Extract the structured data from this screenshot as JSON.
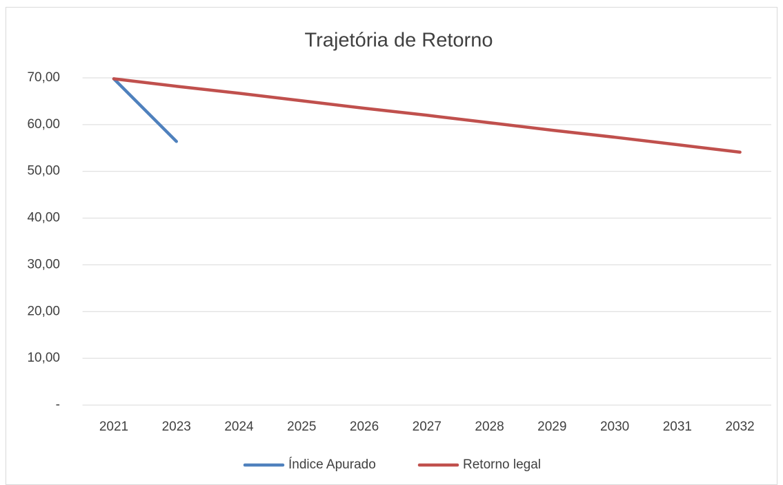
{
  "chart_data": {
    "type": "line",
    "title": "Trajetória de Retorno",
    "categories": [
      "2021",
      "2023",
      "2024",
      "2025",
      "2026",
      "2027",
      "2028",
      "2029",
      "2030",
      "2031",
      "2032"
    ],
    "series": [
      {
        "name": "Índice Apurado",
        "color": "#4f81bd",
        "values": [
          69.8,
          56.4,
          null,
          null,
          null,
          null,
          null,
          null,
          null,
          null,
          null
        ]
      },
      {
        "name": "Retorno legal",
        "color": "#c0504d",
        "values": [
          69.8,
          68.2,
          66.7,
          65.1,
          63.5,
          62.0,
          60.4,
          58.8,
          57.3,
          55.7,
          54.1
        ]
      }
    ],
    "ylim": [
      0,
      70
    ],
    "yticks": [
      {
        "value": 0,
        "label": "-"
      },
      {
        "value": 10,
        "label": "10,00"
      },
      {
        "value": 20,
        "label": "20,00"
      },
      {
        "value": 30,
        "label": "30,00"
      },
      {
        "value": 40,
        "label": "40,00"
      },
      {
        "value": 50,
        "label": "50,00"
      },
      {
        "value": 60,
        "label": "60,00"
      },
      {
        "value": 70,
        "label": "70,00"
      }
    ],
    "grid": true,
    "legend": "bottom"
  }
}
